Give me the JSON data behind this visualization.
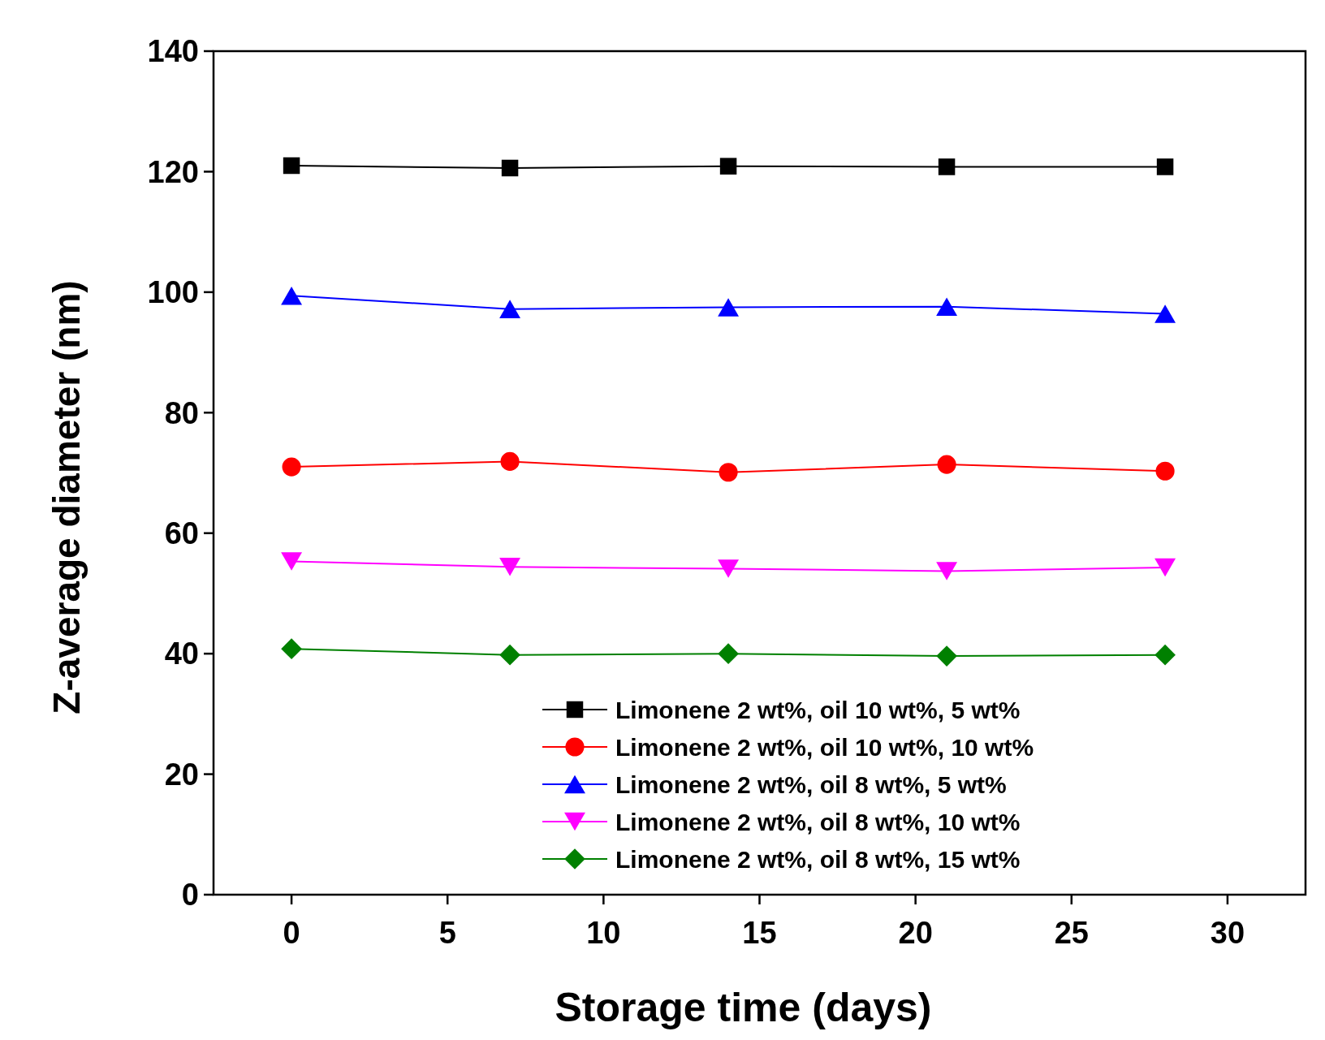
{
  "chart_data": {
    "type": "line",
    "xlabel": "Storage time (days)",
    "ylabel": "Z-average diameter (nm)",
    "x": [
      0,
      7,
      14,
      21,
      28
    ],
    "xlim": [
      -2.5,
      32.5
    ],
    "xticks": [
      0,
      5,
      10,
      15,
      20,
      25,
      30
    ],
    "ylim": [
      0,
      140
    ],
    "yticks": [
      0,
      20,
      40,
      60,
      80,
      100,
      120,
      140
    ],
    "legend": "bottom right",
    "line_style": "solid",
    "series": [
      {
        "name": "Limonene 2 wt%, oil 10 wt%, 5 wt%",
        "color": "#000000",
        "marker": "square",
        "values": [
          121.0,
          120.6,
          120.9,
          120.8,
          120.8
        ]
      },
      {
        "name": "Limonene 2 wt%, oil 10 wt%, 10 wt%",
        "color": "#ff0000",
        "marker": "circle",
        "values": [
          71.0,
          71.9,
          70.1,
          71.4,
          70.3
        ]
      },
      {
        "name": "Limonene 2 wt%, oil 8 wt%, 5 wt%",
        "color": "#0000ff",
        "marker": "triangle",
        "values": [
          99.4,
          97.2,
          97.5,
          97.6,
          96.4
        ]
      },
      {
        "name": "Limonene 2 wt%, oil 8 wt%, 10 wt%",
        "color": "#ff00ff",
        "marker": "triangle-down",
        "values": [
          55.3,
          54.4,
          54.1,
          53.7,
          54.3
        ]
      },
      {
        "name": "Limonene 2 wt%, oil 8 wt%, 15 wt%",
        "color": "#008000",
        "marker": "diamond",
        "values": [
          40.8,
          39.8,
          40.0,
          39.6,
          39.8
        ]
      }
    ]
  }
}
